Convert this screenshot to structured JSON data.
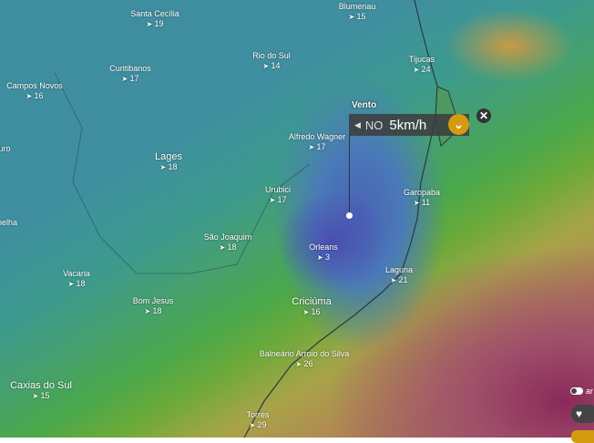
{
  "layer": "Wind",
  "popup": {
    "title": "Vento",
    "direction": "NO",
    "speed": "5km/h",
    "arrow_icon": "arrow-left-icon",
    "dropdown_icon": "chevron-down-icon",
    "close_icon": "close-icon"
  },
  "cities": [
    {
      "name": "Santa Cecília",
      "wind": "19"
    },
    {
      "name": "Blumenau",
      "wind": "15"
    },
    {
      "name": "Rio do Sul",
      "wind": "14"
    },
    {
      "name": "Tijucas",
      "wind": "24"
    },
    {
      "name": "Curitibanos",
      "wind": "17"
    },
    {
      "name": "Campos Novos",
      "wind": "16"
    },
    {
      "name": "Alfredo Wagner",
      "wind": "17"
    },
    {
      "name": "Lages",
      "wind": "18"
    },
    {
      "name": "Urubici",
      "wind": "17"
    },
    {
      "name": "Garopaba",
      "wind": "11"
    },
    {
      "name": "São Joaquim",
      "wind": "18"
    },
    {
      "name": "Orleans",
      "wind": "3"
    },
    {
      "name": "Laguna",
      "wind": "21"
    },
    {
      "name": "Vacaria",
      "wind": "18"
    },
    {
      "name": "Bom Jesus",
      "wind": "18"
    },
    {
      "name": "Criciúma",
      "wind": "16"
    },
    {
      "name": "Balneário Arroio do Silva",
      "wind": "26"
    },
    {
      "name": "Caxias do Sul",
      "wind": "15"
    },
    {
      "name": "Torres",
      "wind": "29"
    }
  ],
  "partial_labels": [
    "uro",
    "nelha"
  ],
  "controls": {
    "toggle_label": "ar",
    "favorite_icon": "heart-icon"
  }
}
